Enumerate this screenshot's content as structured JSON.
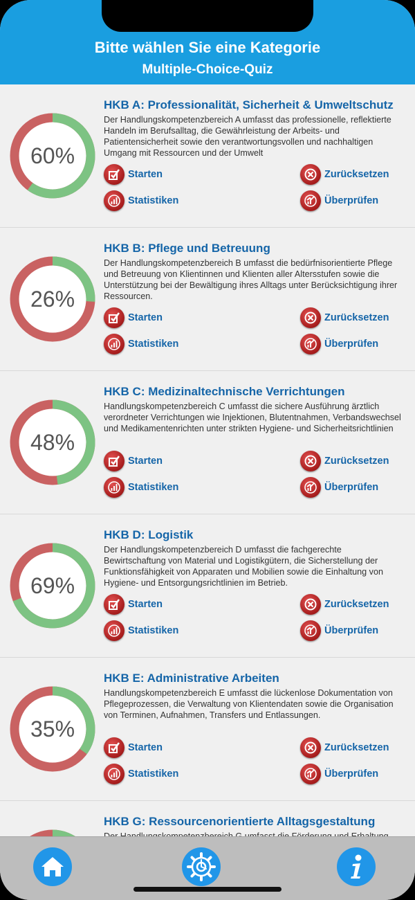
{
  "header": {
    "title": "Bitte wählen Sie eine Kategorie",
    "subtitle": "Multiple-Choice-Quiz"
  },
  "colors": {
    "header_bg": "#1a9ee0",
    "progress_green": "#7dc383",
    "progress_red": "#c96262",
    "link_blue": "#1565a8",
    "tab_icon_bg": "#2196e8"
  },
  "labels": {
    "start": "Starten",
    "reset": "Zurücksetzen",
    "stats": "Statistiken",
    "review": "Überprüfen"
  },
  "categories": [
    {
      "title": "HKB A: Professionalität, Sicherheit & Umweltschutz",
      "description": "Der Handlungskompetenzbereich A umfasst das professionelle, reflektierte Handeln im Berufsalltag, die Gewährleistung der Arbeits- und Patientensicherheit sowie den verantwortungsvollen und nachhaltigen Umgang mit Ressourcen und der Umwelt",
      "percent_label": "60%",
      "percent": 60
    },
    {
      "title": "HKB B: Pflege und Betreuung",
      "description": "Der Handlungskompetenzbereich B umfasst die bedürfnisorientierte Pflege und Betreuung von Klientinnen und Klienten aller Altersstufen sowie die Unterstützung bei der Bewältigung ihres Alltags unter Berücksichtigung ihrer Ressourcen.",
      "percent_label": "26%",
      "percent": 26
    },
    {
      "title": "HKB C: Medizinaltechnische Verrichtungen",
      "description": "Handlungskompetenzbereich C umfasst die sichere Ausführung ärztlich verordneter Verrichtungen wie Injektionen, Blutentnahmen, Verbandswechsel und Medikamentenrichten unter strikten Hygiene- und Sicherheitsrichtlinien",
      "percent_label": "48%",
      "percent": 48
    },
    {
      "title": "HKB D: Logistik",
      "description": "Der Handlungskompetenzbereich D umfasst die fachgerechte Bewirtschaftung von Material und Logistikgütern, die Sicherstellung der Funktionsfähigkeit von Apparaten und Mobilien sowie die Einhaltung von Hygiene- und Entsorgungsrichtlinien im Betrieb.",
      "percent_label": "69%",
      "percent": 69
    },
    {
      "title": "HKB E: Administrative Arbeiten",
      "description": "Handlungskompetenzbereich E umfasst die lückenlose Dokumentation von Pflegeprozessen, die Verwaltung von Klientendaten sowie die Organisation von Terminen, Aufnahmen, Transfers und Entlassungen.",
      "percent_label": "35%",
      "percent": 35
    },
    {
      "title": "HKB G: Ressourcenorientierte Alltagsgestaltung",
      "description": "Der Handlungskompetenzbereich G umfasst die Förderung und Erhaltung",
      "percent_label": "",
      "percent": 60
    }
  ],
  "tabbar": {
    "home_icon": "home-icon",
    "settings_icon": "gear-icon",
    "info_icon": "info-icon"
  }
}
